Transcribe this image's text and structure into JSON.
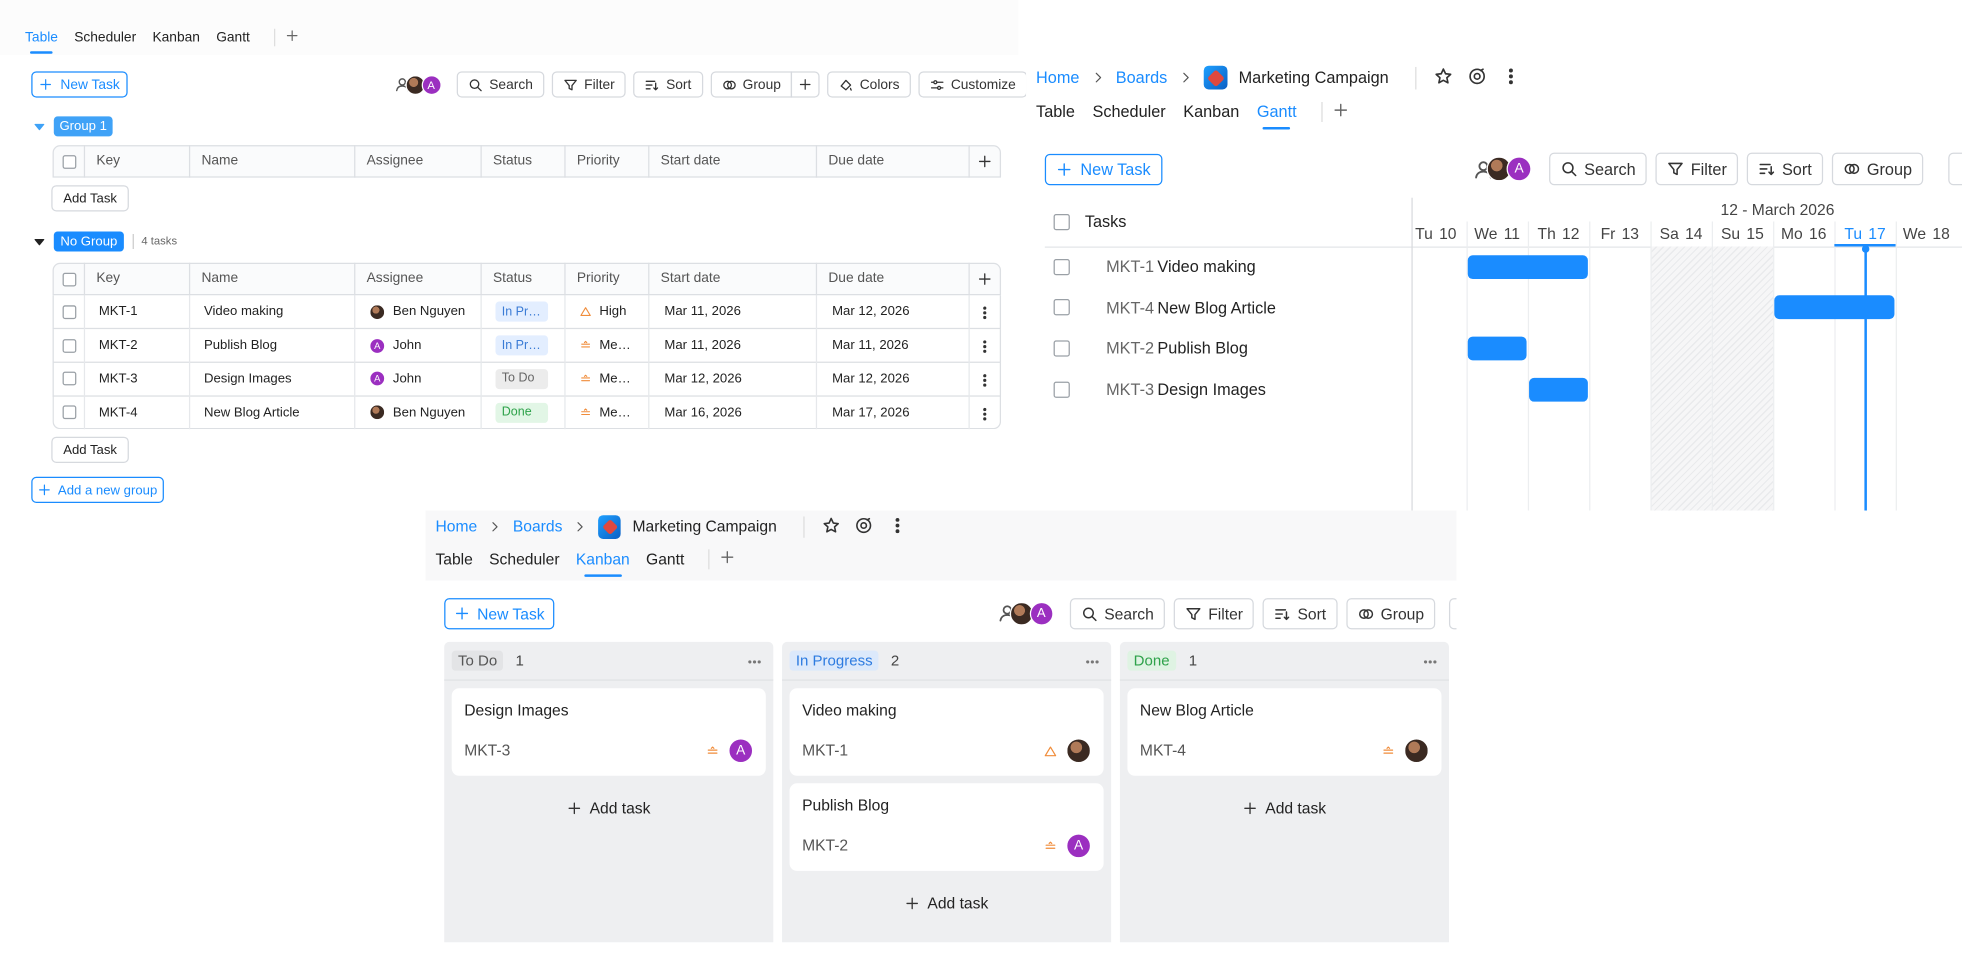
{
  "table_view": {
    "tabs": [
      "Table",
      "Scheduler",
      "Kanban",
      "Gantt"
    ],
    "new_task": "New Task",
    "avatar": "A",
    "toolbar": [
      "Search",
      "Filter",
      "Sort",
      "Group",
      "Colors",
      "Customize"
    ],
    "columns": [
      "Key",
      "Name",
      "Assignee",
      "Status",
      "Priority",
      "Start date",
      "Due date"
    ],
    "groups": [
      {
        "name": "Group 1",
        "add_task": "Add Task"
      },
      {
        "name": "No Group",
        "count": "4 tasks",
        "rows": [
          {
            "key": "MKT-1",
            "name": "Video making",
            "assignee": "Ben Nguyen",
            "status": "In Pr…",
            "priority": "High",
            "start_date": "Mar 11, 2026",
            "due_date": "Mar 12, 2026"
          },
          {
            "key": "MKT-2",
            "name": "Publish Blog",
            "avatar": "A",
            "assignee": "John",
            "status": "In Pr…",
            "priority": "Me…",
            "start_date": "Mar 11, 2026",
            "due_date": "Mar 11, 2026"
          },
          {
            "key": "MKT-3",
            "name": "Design Images",
            "avatar": "A",
            "assignee": "John",
            "status": "To Do",
            "priority": "Me…",
            "start_date": "Mar 12, 2026",
            "due_date": "Mar 12, 2026"
          },
          {
            "key": "MKT-4",
            "name": "New Blog Article",
            "assignee": "Ben Nguyen",
            "status": "Done",
            "priority": "Me…",
            "start_date": "Mar 16, 2026",
            "due_date": "Mar 17, 2026"
          }
        ],
        "add_task": "Add Task"
      }
    ],
    "add_group": "Add a new group"
  },
  "gantt_view": {
    "breadcrumb": [
      "Home",
      "Boards",
      "Marketing Campaign"
    ],
    "tabs": [
      "Table",
      "Scheduler",
      "Kanban",
      "Gantt"
    ],
    "new_task": "New Task",
    "avatar": "A",
    "toolbar": [
      "Search",
      "Filter",
      "Sort",
      "Group"
    ],
    "tasks_header": "Tasks",
    "month": "12 - March 2026",
    "days": [
      {
        "weekday": "Tu",
        "day": 10
      },
      {
        "weekday": "We",
        "day": 11
      },
      {
        "weekday": "Th",
        "day": 12
      },
      {
        "weekday": "Fr",
        "day": 13
      },
      {
        "weekday": "Sa",
        "day": 14
      },
      {
        "weekday": "Su",
        "day": 15
      },
      {
        "weekday": "Mo",
        "day": 16
      },
      {
        "weekday": "Tu",
        "day": 17
      },
      {
        "weekday": "We",
        "day": 18
      }
    ],
    "today": 17,
    "tasks": [
      {
        "key": "MKT-1",
        "name": "Video making",
        "start": 11,
        "end": 12
      },
      {
        "key": "MKT-4",
        "name": "New Blog Article",
        "start": 16,
        "end": 17
      },
      {
        "key": "MKT-2",
        "name": "Publish Blog",
        "start": 11,
        "end": 11
      },
      {
        "key": "MKT-3",
        "name": "Design Images",
        "start": 12,
        "end": 12
      }
    ]
  },
  "kanban_view": {
    "breadcrumb": [
      "Home",
      "Boards",
      "Marketing Campaign"
    ],
    "tabs": [
      "Table",
      "Scheduler",
      "Kanban",
      "Gantt"
    ],
    "new_task": "New Task",
    "avatar": "A",
    "toolbar": [
      "Search",
      "Filter",
      "Sort",
      "Group"
    ],
    "columns": [
      {
        "status": "To Do",
        "count": 1,
        "cards": [
          {
            "title": "Design Images",
            "key": "MKT-3",
            "avatar": "A"
          }
        ],
        "add_task": "Add task"
      },
      {
        "status": "In Progress",
        "count": 2,
        "cards": [
          {
            "title": "Video making",
            "key": "MKT-1"
          },
          {
            "title": "Publish Blog",
            "key": "MKT-2",
            "avatar": "A"
          }
        ],
        "add_task": "Add task"
      },
      {
        "status": "Done",
        "count": 1,
        "cards": [
          {
            "title": "New Blog Article",
            "key": "MKT-4"
          }
        ],
        "add_task": "Add task"
      }
    ]
  }
}
